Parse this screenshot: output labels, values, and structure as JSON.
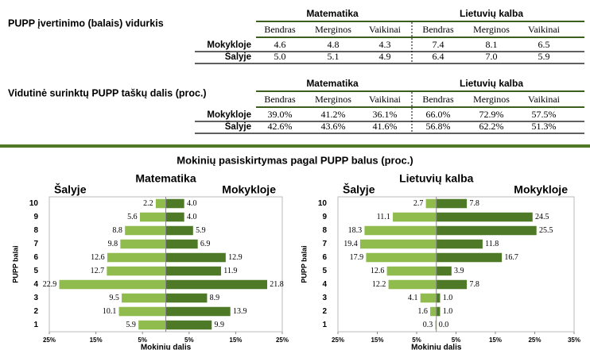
{
  "table1": {
    "title": "PUPP įvertinimo (balais) vidurkis",
    "groups": [
      "Matematika",
      "Lietuvių kalba"
    ],
    "columns": [
      "Bendras",
      "Merginos",
      "Vaikinai",
      "Bendras",
      "Merginos",
      "Vaikinai"
    ],
    "rows": [
      {
        "label": "Mokykloje",
        "cells": [
          "4.6",
          "4.8",
          "4.3",
          "7.4",
          "8.1",
          "6.5"
        ]
      },
      {
        "label": "Šalyje",
        "cells": [
          "5.0",
          "5.1",
          "4.9",
          "6.4",
          "7.0",
          "5.9"
        ]
      }
    ]
  },
  "table2": {
    "title": "Vidutinė surinktų PUPP taškų dalis (proc.)",
    "groups": [
      "Matematika",
      "Lietuvių kalba"
    ],
    "columns": [
      "Bendras",
      "Merginos",
      "Vaikinai",
      "Bendras",
      "Merginos",
      "Vaikinai"
    ],
    "rows": [
      {
        "label": "Mokykloje",
        "cells": [
          "39.0%",
          "41.2%",
          "36.1%",
          "66.0%",
          "72.9%",
          "57.5%"
        ]
      },
      {
        "label": "Šalyje",
        "cells": [
          "42.6%",
          "43.6%",
          "41.6%",
          "56.8%",
          "62.2%",
          "51.3%"
        ]
      }
    ]
  },
  "section_title": "Mokinių pasiskirtymas pagal PUPP balus (proc.)",
  "chart_data": [
    {
      "type": "bar",
      "title": "Matematika",
      "y_label": "PUPP balai",
      "x_label": "Mokinių dalis",
      "categories": [
        "10",
        "9",
        "8",
        "7",
        "6",
        "5",
        "4",
        "3",
        "2",
        "1"
      ],
      "series": [
        {
          "name": "Šalyje",
          "color": "#8fbc4c",
          "values": [
            2.2,
            5.6,
            8.8,
            9.8,
            12.6,
            12.7,
            22.9,
            9.5,
            10.1,
            5.9
          ],
          "value_labels": [
            "2.2",
            "5.6",
            "8.8",
            "9.8",
            "12.6",
            "12.7",
            "22.9",
            "9.5",
            "10.1",
            "5.9"
          ]
        },
        {
          "name": "Mokykloje",
          "color": "#4e7a27",
          "values": [
            4.0,
            4.0,
            5.9,
            6.9,
            12.9,
            11.9,
            21.8,
            8.9,
            13.9,
            9.9
          ],
          "value_labels": [
            "4.0",
            "4.0",
            "5.9",
            "6.9",
            "12.9",
            "11.9",
            "21.8",
            "8.9",
            "13.9",
            "9.9"
          ]
        }
      ],
      "xlim": [
        -25,
        25
      ],
      "xticks": [
        {
          "value": -25,
          "label": "25%"
        },
        {
          "value": -15,
          "label": "15%"
        },
        {
          "value": -5,
          "label": "5%"
        },
        {
          "value": 5,
          "label": "5%"
        },
        {
          "value": 15,
          "label": "15%"
        },
        {
          "value": 25,
          "label": "25%"
        }
      ]
    },
    {
      "type": "bar",
      "title": "Lietuvių kalba",
      "y_label": "PUPP balai",
      "x_label": "Mokinių dalis",
      "categories": [
        "10",
        "9",
        "8",
        "7",
        "6",
        "5",
        "4",
        "3",
        "2",
        "1"
      ],
      "series": [
        {
          "name": "Šalyje",
          "color": "#8fbc4c",
          "values": [
            2.7,
            11.1,
            18.3,
            19.4,
            17.9,
            12.6,
            12.2,
            4.1,
            1.6,
            0.3
          ],
          "value_labels": [
            "2.7",
            "11.1",
            "18.3",
            "19.4",
            "17.9",
            "12.6",
            "12.2",
            "4.1",
            "1.6",
            "0.3"
          ]
        },
        {
          "name": "Mokykloje",
          "color": "#4e7a27",
          "values": [
            7.8,
            24.5,
            25.5,
            11.8,
            16.7,
            3.9,
            7.8,
            1.0,
            1.0,
            0.0
          ],
          "value_labels": [
            "7.8",
            "24.5",
            "25.5",
            "11.8",
            "16.7",
            "3.9",
            "7.8",
            "1.0",
            "1.0",
            "0.0"
          ]
        }
      ],
      "xlim": [
        -25,
        35
      ],
      "xticks": [
        {
          "value": -25,
          "label": "25%"
        },
        {
          "value": -15,
          "label": "15%"
        },
        {
          "value": -5,
          "label": "5%"
        },
        {
          "value": 5,
          "label": "5%"
        },
        {
          "value": 15,
          "label": "15%"
        },
        {
          "value": 25,
          "label": "25%"
        },
        {
          "value": 35,
          "label": "35%"
        }
      ]
    }
  ]
}
